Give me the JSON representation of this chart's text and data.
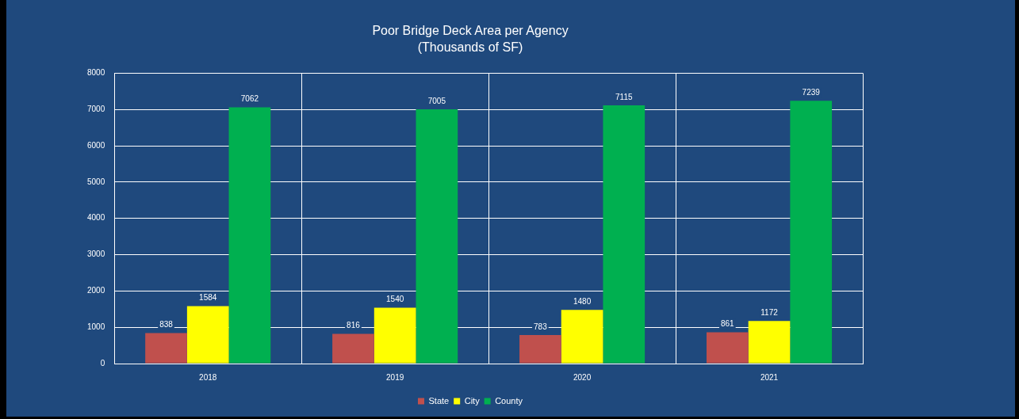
{
  "chart_data": {
    "type": "bar",
    "title": "Poor Bridge Deck Area per Agency",
    "subtitle": "(Thousands of SF)",
    "categories": [
      "2018",
      "2019",
      "2020",
      "2021"
    ],
    "series": [
      {
        "name": "State",
        "color": "#c0504d",
        "values": [
          838,
          816,
          783,
          861
        ]
      },
      {
        "name": "City",
        "color": "#ffff00",
        "values": [
          1584,
          1540,
          1480,
          1172
        ]
      },
      {
        "name": "County",
        "color": "#00b050",
        "values": [
          7062,
          7005,
          7115,
          7239
        ]
      }
    ],
    "ylim": [
      0,
      8000
    ],
    "yticks": [
      0,
      1000,
      2000,
      3000,
      4000,
      5000,
      6000,
      7000,
      8000
    ],
    "grid": true,
    "legend": "bottom",
    "data_labels": true
  }
}
